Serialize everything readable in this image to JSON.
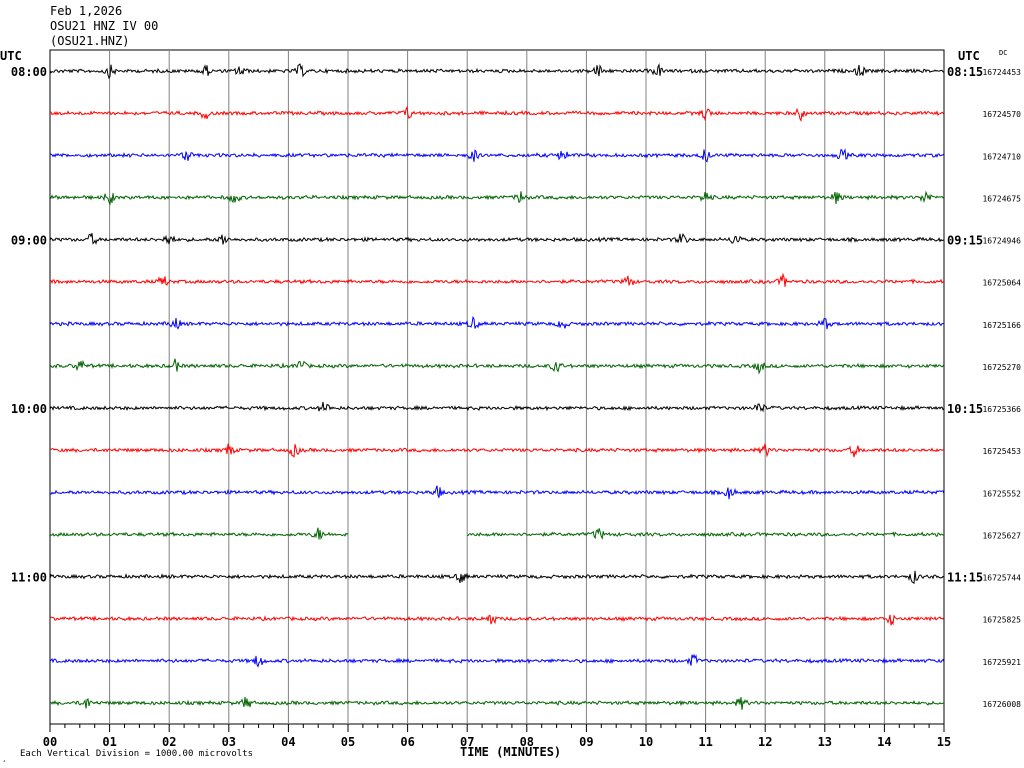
{
  "header": {
    "date": "Feb 1,2026",
    "station": "OSU21 HNZ IV 00",
    "code": "(OSU21.HNZ)"
  },
  "utc_left": "UTC",
  "utc_right": "UTC",
  "dc_label": "DC",
  "footer": {
    "scale_note": "Each Vertical Division = 1000.00 microvolts",
    "mark": "¸"
  },
  "chart_data": {
    "type": "line",
    "xlabel": "TIME (MINUTES)",
    "xlim": [
      0,
      15
    ],
    "x_ticks": [
      "00",
      "01",
      "02",
      "03",
      "04",
      "05",
      "06",
      "07",
      "08",
      "09",
      "10",
      "11",
      "12",
      "13",
      "14",
      "15"
    ],
    "trace_colors": [
      "#000000",
      "#ff0000",
      "#0000ff",
      "#006400"
    ],
    "left_time_labels": [
      {
        "row": 0,
        "text": "08:00"
      },
      {
        "row": 4,
        "text": "09:00"
      },
      {
        "row": 8,
        "text": "10:00"
      },
      {
        "row": 12,
        "text": "11:00"
      }
    ],
    "right_time_labels": [
      {
        "row": 0,
        "text": "08:15"
      },
      {
        "row": 4,
        "text": "09:15"
      },
      {
        "row": 8,
        "text": "10:15"
      },
      {
        "row": 12,
        "text": "11:15"
      }
    ],
    "series": [
      {
        "count": "16724453",
        "bursts": [
          1.0,
          2.6,
          3.2,
          4.2,
          9.2,
          10.2,
          13.6
        ]
      },
      {
        "count": "16724570",
        "bursts": [
          2.6,
          6.0,
          11.0,
          12.6
        ]
      },
      {
        "count": "16724710",
        "bursts": [
          2.3,
          7.1,
          8.6,
          11.0,
          13.3
        ]
      },
      {
        "count": "16724675",
        "bursts": [
          1.0,
          3.1,
          7.9,
          11.0,
          13.2,
          14.7
        ]
      },
      {
        "count": "16724946",
        "bursts": [
          0.7,
          2.0,
          2.9,
          10.6,
          11.5
        ]
      },
      {
        "count": "16725064",
        "bursts": [
          1.9,
          9.7,
          12.3
        ]
      },
      {
        "count": "16725166",
        "bursts": [
          2.1,
          7.1,
          8.6,
          13.0
        ]
      },
      {
        "count": "16725270",
        "bursts": [
          0.5,
          2.1,
          4.2,
          8.5,
          11.9
        ]
      },
      {
        "count": "16725366",
        "bursts": [
          4.6,
          11.9
        ]
      },
      {
        "count": "16725453",
        "bursts": [
          3.0,
          4.1,
          12.0,
          13.5
        ]
      },
      {
        "count": "16725552",
        "bursts": [
          6.5,
          11.4
        ]
      },
      {
        "count": "16725627",
        "bursts": [
          4.5,
          9.2
        ],
        "gap": [
          5.0,
          7.0
        ]
      },
      {
        "count": "16725744",
        "bursts": [
          6.9,
          14.5
        ]
      },
      {
        "count": "16725825",
        "bursts": [
          7.4,
          14.1
        ]
      },
      {
        "count": "16725921",
        "bursts": [
          3.5,
          10.8
        ]
      },
      {
        "count": "16726008",
        "bursts": [
          0.6,
          3.3,
          11.6
        ]
      }
    ]
  }
}
